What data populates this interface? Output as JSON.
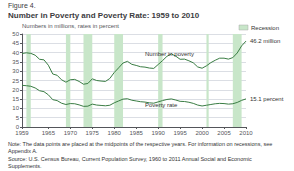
{
  "chart_data": {
    "type": "line",
    "subtitle": "Figure 4.",
    "title": "Number in Poverty and Poverty Rate: 1959 to 2010",
    "ylabel": "Numbers in millions, rates in percent",
    "x": [
      1959,
      1960,
      1961,
      1962,
      1963,
      1964,
      1965,
      1966,
      1967,
      1968,
      1969,
      1970,
      1971,
      1972,
      1973,
      1974,
      1975,
      1976,
      1977,
      1978,
      1979,
      1980,
      1981,
      1982,
      1983,
      1984,
      1985,
      1986,
      1987,
      1988,
      1989,
      1990,
      1991,
      1992,
      1993,
      1994,
      1995,
      1996,
      1997,
      1998,
      1999,
      2000,
      2001,
      2002,
      2003,
      2004,
      2005,
      2006,
      2007,
      2008,
      2009,
      2010
    ],
    "series": [
      {
        "color": "#3a7d44",
        "values": [
          39.5,
          39.9,
          39.6,
          38.6,
          36.4,
          36.1,
          33.2,
          28.5,
          27.8,
          25.4,
          24.1,
          25.4,
          25.6,
          24.5,
          23.0,
          23.4,
          25.9,
          25.0,
          24.7,
          24.5,
          26.1,
          29.3,
          31.8,
          34.4,
          35.3,
          33.7,
          33.1,
          32.4,
          32.2,
          31.7,
          31.5,
          33.6,
          35.7,
          38.0,
          39.3,
          38.1,
          36.4,
          36.5,
          35.6,
          34.5,
          32.3,
          31.6,
          32.9,
          34.6,
          35.9,
          37.0,
          37.0,
          36.5,
          37.3,
          39.8,
          43.6,
          46.2
        ]
      },
      {
        "color": "#3a7d44",
        "values": [
          22.4,
          22.2,
          21.9,
          21.0,
          19.5,
          19.0,
          17.3,
          14.7,
          14.2,
          12.8,
          12.1,
          12.6,
          12.5,
          11.9,
          11.1,
          11.2,
          12.3,
          11.8,
          11.6,
          11.4,
          11.7,
          13.0,
          14.0,
          15.0,
          15.2,
          14.4,
          14.0,
          13.6,
          13.4,
          13.0,
          12.8,
          13.5,
          14.2,
          14.8,
          15.1,
          14.5,
          13.8,
          13.7,
          13.3,
          12.7,
          11.8,
          11.3,
          11.7,
          12.1,
          12.5,
          12.7,
          12.6,
          12.3,
          12.5,
          13.2,
          14.3,
          15.1
        ]
      }
    ],
    "xlim": [
      1959,
      2010
    ],
    "xticks": [
      1959,
      1965,
      1970,
      1975,
      1980,
      1985,
      1990,
      1995,
      2000,
      2005,
      2010
    ],
    "ylim": [
      0,
      50
    ],
    "yticks": [
      0,
      5,
      10,
      15,
      20,
      25,
      30,
      35,
      40,
      45,
      50
    ],
    "grid": true,
    "recession_bands": [
      [
        1960,
        1961
      ],
      [
        1969,
        1970
      ],
      [
        1973,
        1975
      ],
      [
        1980,
        1982
      ],
      [
        1990,
        1991
      ],
      [
        2001,
        2001.5
      ],
      [
        2007,
        2009
      ]
    ],
    "recession_color": "#c8e6c9",
    "recession_legend": "Recession",
    "annotations": [
      {
        "text": "Number in poverty",
        "x": 1987,
        "y": 37.5
      },
      {
        "text": "Poverty rate",
        "x": 1987,
        "y": 13.2
      },
      {
        "text": "46.2 million",
        "x": 2010,
        "y": 46.2
      },
      {
        "text": "15.1 percent",
        "x": 2010,
        "y": 15.1
      }
    ],
    "note": "Note: The data points are placed at the midpoints of the respective years. For information on recessions, see Appendix A.",
    "source": "Source: U.S. Census Bureau, Current Population Survey, 1960 to 2011 Annual Social and Economic Supplements."
  }
}
